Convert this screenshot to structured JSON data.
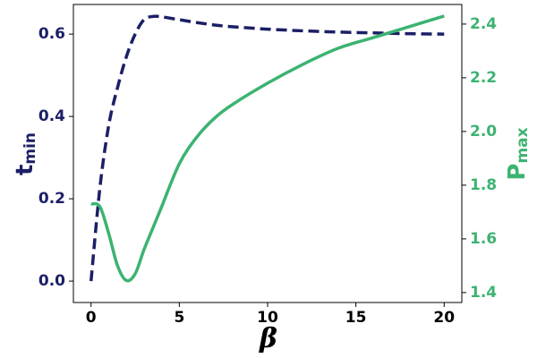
{
  "chart_data": {
    "type": "line",
    "x_label": "β",
    "y_label": "t",
    "y_label_sub": "min",
    "y2_label": "P",
    "y2_label_sub": "max",
    "x": [
      0,
      0.5,
      1,
      1.5,
      2,
      2.5,
      3,
      3.5,
      4,
      5,
      6,
      7,
      8,
      10,
      12,
      14,
      16,
      18,
      20
    ],
    "series": [
      {
        "color": "#1b1f66",
        "dash": true,
        "axis": "y",
        "values": [
          0,
          0.226,
          0.378,
          0.47,
          0.545,
          0.6,
          0.635,
          0.643,
          0.642,
          0.635,
          0.628,
          0.622,
          0.618,
          0.612,
          0.608,
          0.605,
          0.603,
          0.601,
          0.6
        ]
      },
      {
        "color": "#3cb371",
        "dash": false,
        "axis": "y2",
        "values": [
          1.73,
          1.72,
          1.62,
          1.5,
          1.445,
          1.47,
          1.56,
          1.64,
          1.72,
          1.88,
          1.98,
          2.05,
          2.1,
          2.18,
          2.25,
          2.31,
          2.35,
          2.39,
          2.43
        ]
      }
    ],
    "xlim": [
      -1,
      21
    ],
    "xticks": [
      0,
      5,
      10,
      15,
      20
    ],
    "ylim": [
      -0.052,
      0.672
    ],
    "yticks": [
      {
        "value": 0,
        "label": "0.0"
      },
      0.2,
      0.4,
      0.6
    ],
    "y2lim": [
      1.363,
      2.473
    ],
    "y2ticks": [
      1.4,
      1.6,
      1.8,
      {
        "value": 2,
        "label": "2.0"
      },
      2.2,
      2.4
    ]
  }
}
